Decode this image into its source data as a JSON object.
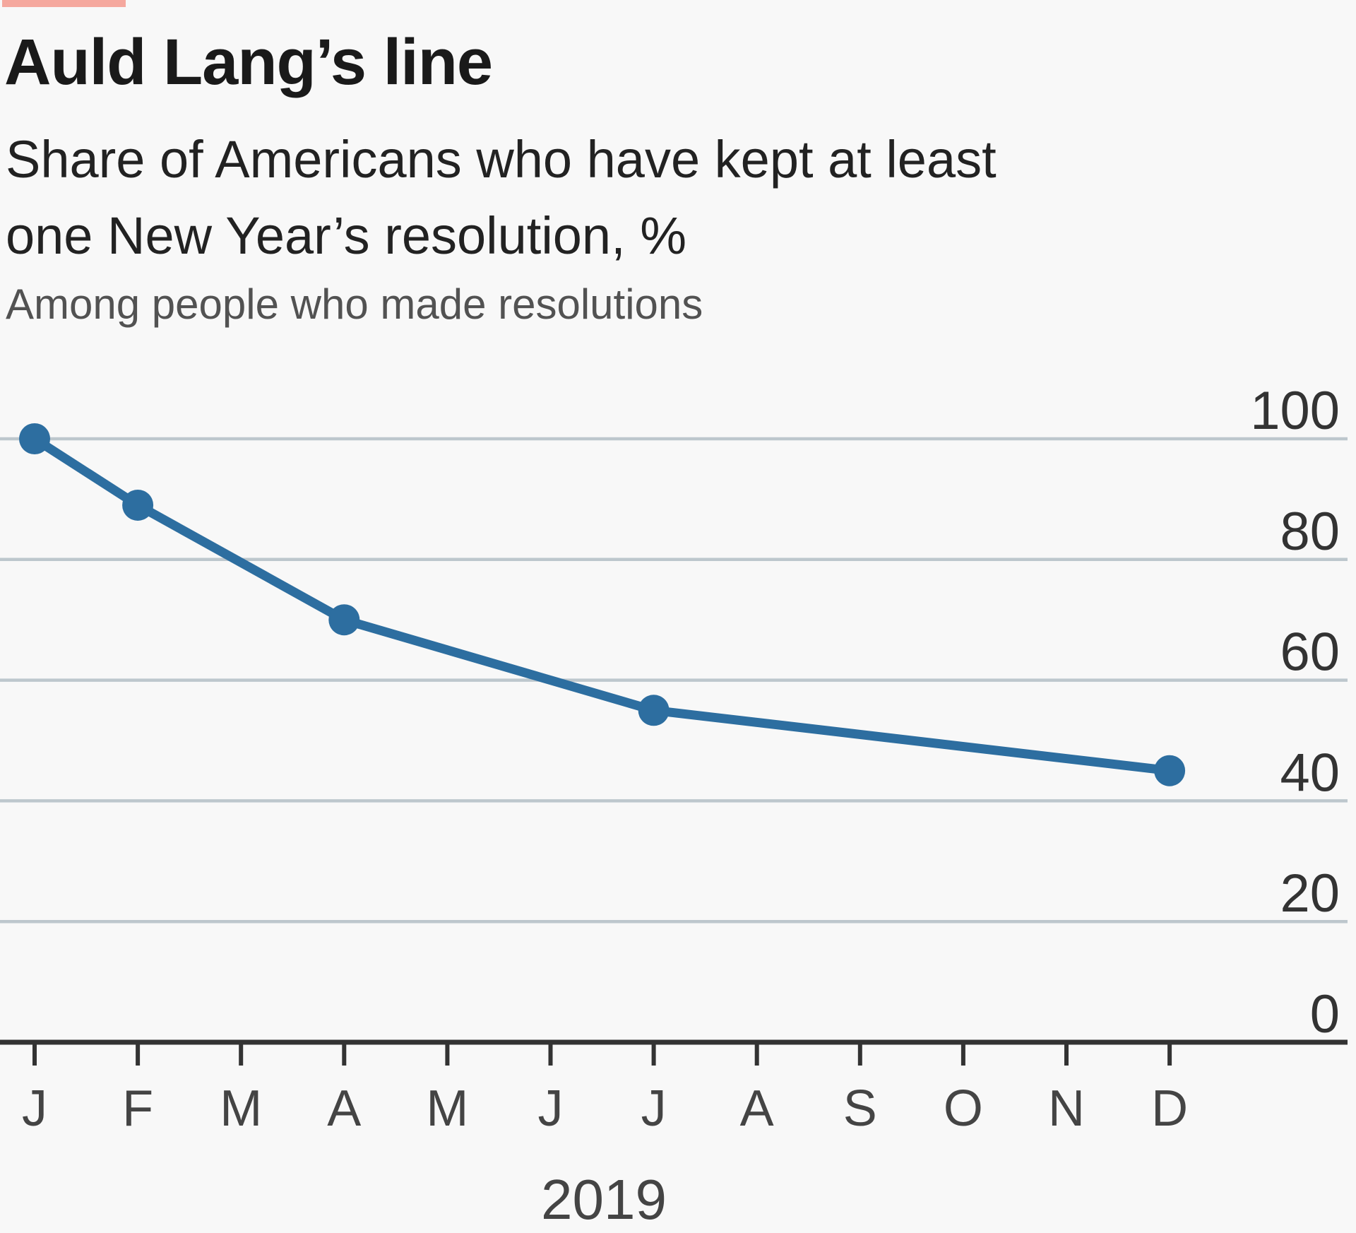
{
  "chart_data": {
    "type": "line",
    "title": "Auld Lang’s line",
    "subtitle_lines": [
      "Share of Americans who have kept at least",
      "one New Year’s resolution, %"
    ],
    "note": "Among people who made resolutions",
    "x_axis": {
      "year_label": "2019",
      "categories": [
        "J",
        "F",
        "M",
        "A",
        "M",
        "J",
        "J",
        "A",
        "S",
        "O",
        "N",
        "D"
      ]
    },
    "y_axis": {
      "ticks": [
        0,
        20,
        40,
        60,
        80,
        100
      ],
      "range": [
        0,
        100
      ],
      "label_side": "right"
    },
    "grid": "horizontal-only",
    "legend": "none",
    "series": [
      {
        "name": "Share who have kept at least one resolution, %",
        "points": [
          {
            "month": "Jan",
            "month_index": 0,
            "value": 100
          },
          {
            "month": "Feb",
            "month_index": 1,
            "value": 89
          },
          {
            "month": "Apr",
            "month_index": 3,
            "value": 70
          },
          {
            "month": "Jul",
            "month_index": 6,
            "value": 55
          },
          {
            "month": "Dec",
            "month_index": 11,
            "value": 45
          }
        ]
      }
    ],
    "colors": {
      "line": "#2D6EA0",
      "gridline": "#BDC7CD",
      "axis": "#333333",
      "tab_red": "#F5A89E",
      "title_text": "#1A1A1A",
      "subtitle_text": "#222222",
      "note_text": "#525252",
      "tick_label": "#444444",
      "y_label": "#333333",
      "background": "#F8F8F8"
    }
  }
}
